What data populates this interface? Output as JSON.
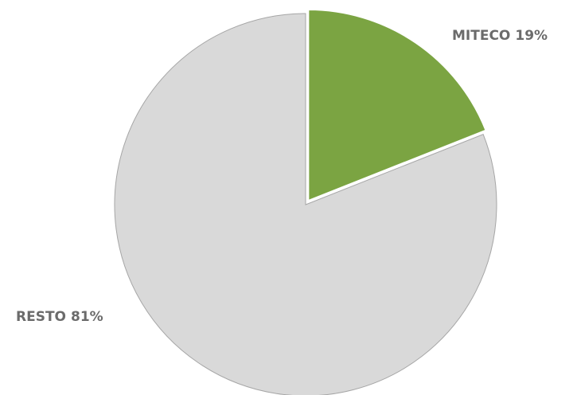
{
  "chart_data": {
    "type": "pie",
    "categories": [
      "MITECO",
      "RESTO"
    ],
    "values": [
      19,
      81
    ],
    "value_labels": [
      "19%",
      "81%"
    ],
    "colors": [
      "#7ba442",
      "#d9d9d9"
    ],
    "exploded": [
      true,
      false
    ]
  }
}
